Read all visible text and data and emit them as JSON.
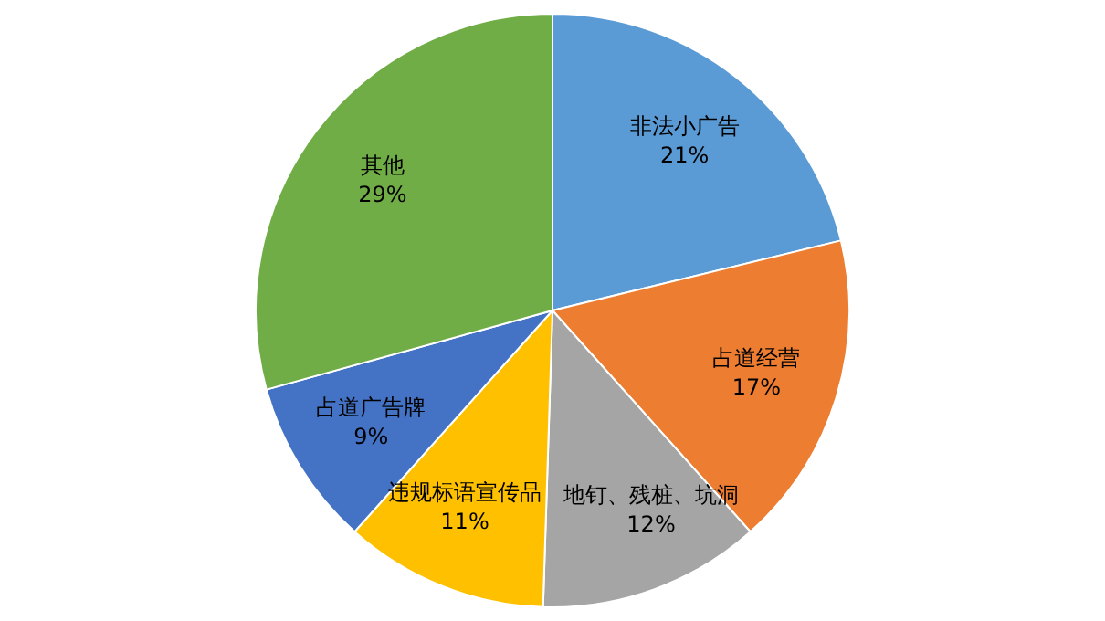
{
  "chart_data": {
    "type": "pie",
    "categories": [
      "非法小广告",
      "占道经营",
      "地钉、残桩、坑洞",
      "违规标语宣传品",
      "占道广告牌",
      "其他"
    ],
    "values": [
      21,
      17,
      12,
      11,
      9,
      29
    ],
    "value_labels": [
      "21%",
      "17%",
      "12%",
      "11%",
      "9%",
      "29%"
    ],
    "colors": [
      "#5b9bd5",
      "#ed7d31",
      "#a5a5a5",
      "#ffc000",
      "#4472c4",
      "#70ad47"
    ],
    "legend": false
  }
}
